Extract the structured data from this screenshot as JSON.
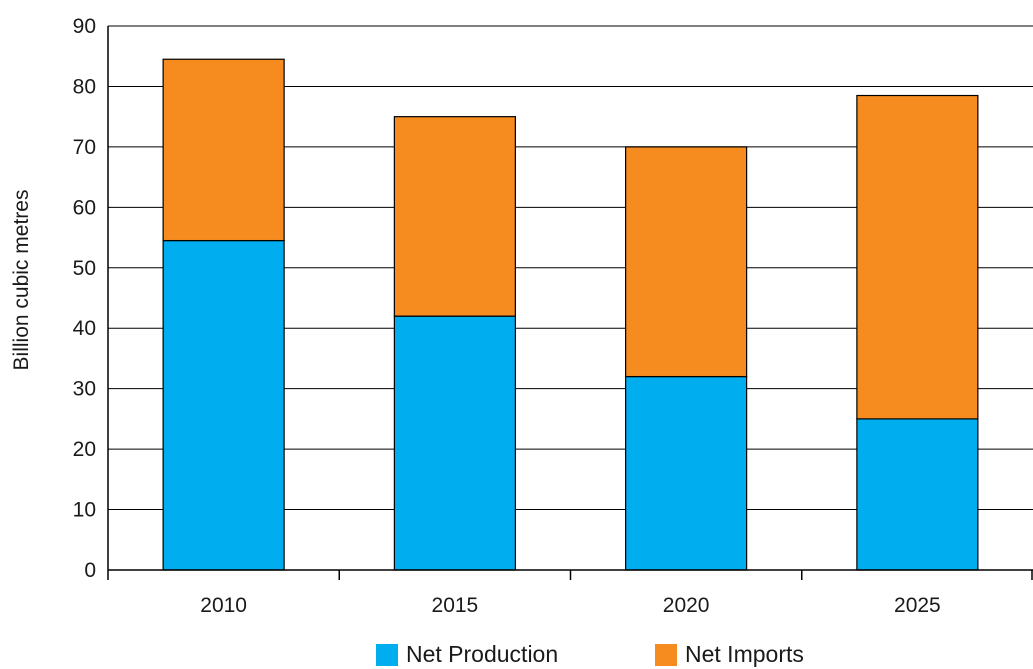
{
  "chart_data": {
    "type": "bar",
    "stacked": true,
    "categories": [
      "2010",
      "2015",
      "2020",
      "2025"
    ],
    "series": [
      {
        "name": "Net Production",
        "color": "#00AEEF",
        "values": [
          54.5,
          42,
          32,
          25
        ]
      },
      {
        "name": "Net Imports",
        "color": "#F68B1F",
        "values": [
          30,
          33,
          38,
          53.5
        ]
      }
    ],
    "title": "",
    "xlabel": "",
    "ylabel": "Billion cubic metres",
    "ylim": [
      0,
      90
    ],
    "yticks": [
      "0",
      "10",
      "20",
      "30",
      "40",
      "50",
      "60",
      "70",
      "80",
      "90"
    ],
    "grid": true,
    "legend_position": "bottom-center"
  }
}
